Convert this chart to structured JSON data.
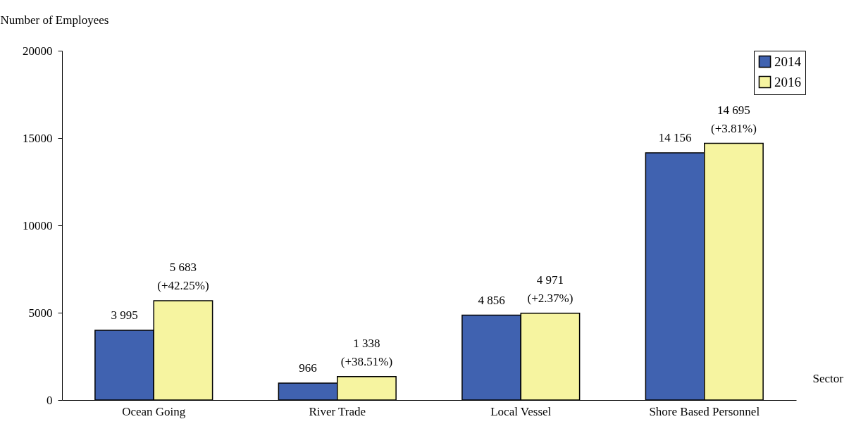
{
  "chart_data": {
    "type": "bar",
    "ylabel": "Number of Employees",
    "xlabel": "Sector",
    "categories": [
      "Ocean Going",
      "River Trade",
      "Local Vessel",
      "Shore Based Personnel"
    ],
    "series": [
      {
        "name": "2014",
        "color": "#4062b0",
        "values": [
          3995,
          966,
          4856,
          14156
        ],
        "value_labels": [
          "3 995",
          "966",
          "4 856",
          "14 156"
        ]
      },
      {
        "name": "2016",
        "color": "#f6f4a0",
        "values": [
          5683,
          1338,
          4971,
          14695
        ],
        "value_labels": [
          "5 683 (+42.25%)",
          "1 338 (+38.51%)",
          "4 971 (+2.37%)",
          "14 695 (+3.81%)"
        ]
      }
    ],
    "ylim": [
      0,
      20000
    ],
    "yticks": [
      0,
      5000,
      10000,
      15000,
      20000
    ],
    "grid": false,
    "legend": "right"
  }
}
